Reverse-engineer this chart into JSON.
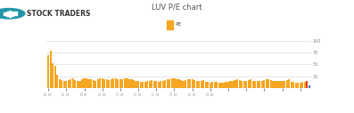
{
  "title": "LUV P/E chart",
  "logo_text": "STOCK TRADERS",
  "legend_label": "PE",
  "legend_color": "#F5A623",
  "bar_color": "#F5A623",
  "last_bar_color": "#4472C4",
  "second_last_bar_color": "#E53935",
  "ylim": [
    0,
    100
  ],
  "yticks": [
    25,
    50,
    75,
    100
  ],
  "background_color": "#FFFFFF",
  "plot_bg_color": "#FFFFFF",
  "grid_color": "#DDDDDD",
  "figsize": [
    3.97,
    1.27
  ],
  "dpi": 100,
  "pe_values": [
    70,
    78,
    52,
    47,
    28,
    19,
    17,
    16,
    15,
    17,
    19,
    20,
    17,
    16,
    15,
    19,
    20,
    20,
    19,
    18,
    17,
    16,
    19,
    20,
    20,
    19,
    18,
    17,
    19,
    20,
    20,
    19,
    18,
    19,
    20,
    20,
    19,
    18,
    17,
    16,
    15,
    14,
    13,
    14,
    15,
    16,
    17,
    16,
    15,
    14,
    15,
    16,
    17,
    18,
    19,
    20,
    21,
    19,
    18,
    17,
    16,
    17,
    18,
    19,
    18,
    17,
    16,
    15,
    16,
    17,
    14,
    13,
    12,
    13,
    14,
    13,
    12,
    11,
    12,
    13,
    14,
    15,
    16,
    17,
    18,
    17,
    16,
    15,
    16,
    17,
    18,
    16,
    15,
    15,
    15,
    16,
    17,
    18,
    19,
    17,
    16,
    15,
    15,
    16,
    15,
    16,
    17,
    18,
    14,
    13,
    12,
    11,
    12,
    13,
    14,
    15,
    5
  ]
}
